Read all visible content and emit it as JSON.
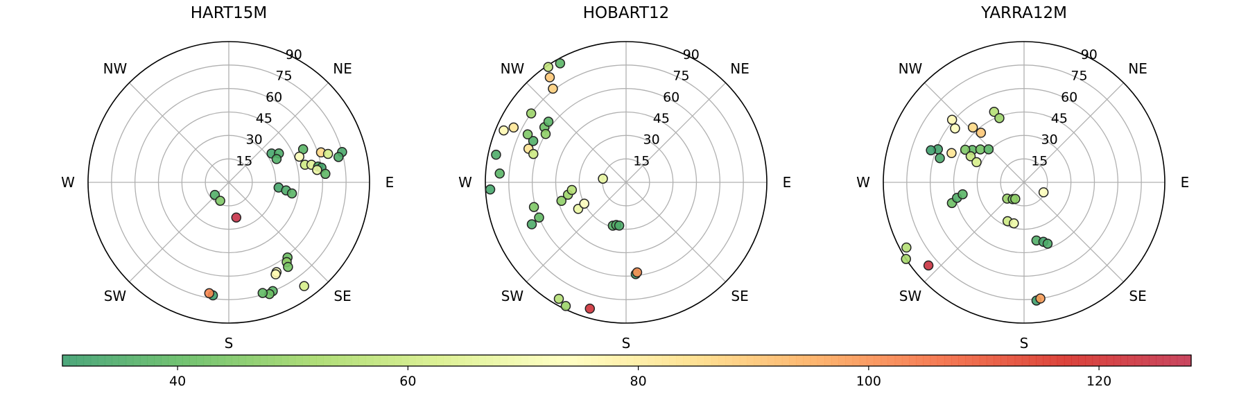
{
  "chart_data": [
    {
      "type": "scatter",
      "title": "HART15M",
      "r_ticks": [
        "15",
        "30",
        "45",
        "60",
        "75",
        "90"
      ],
      "theta_labels": {
        "E": "E",
        "NE": "NE",
        "N": "",
        "NW": "NW",
        "W": "W",
        "SW": "SW",
        "S": "S",
        "SE": "SE"
      },
      "points": [
        {
          "az": 66,
          "zen": 52,
          "v": 38
        },
        {
          "az": 70,
          "zen": 48,
          "v": 72
        },
        {
          "az": 72,
          "zen": 62,
          "v": 86
        },
        {
          "az": 74,
          "zen": 66,
          "v": 62
        },
        {
          "az": 75,
          "zen": 75,
          "v": 34
        },
        {
          "az": 77,
          "zen": 72,
          "v": 35
        },
        {
          "az": 56,
          "zen": 33,
          "v": 33
        },
        {
          "az": 60,
          "zen": 37,
          "v": 35
        },
        {
          "az": 64,
          "zen": 34,
          "v": 36
        },
        {
          "az": 77,
          "zen": 50,
          "v": 60
        },
        {
          "az": 78,
          "zen": 54,
          "v": 65
        },
        {
          "az": 80,
          "zen": 58,
          "v": 36
        },
        {
          "az": 81,
          "zen": 60,
          "v": 33
        },
        {
          "az": 82,
          "zen": 57,
          "v": 68
        },
        {
          "az": 85,
          "zen": 62,
          "v": 39
        },
        {
          "az": 96,
          "zen": 32,
          "v": 33
        },
        {
          "az": 98,
          "zen": 37,
          "v": 35
        },
        {
          "az": 100,
          "zen": 41,
          "v": 38
        },
        {
          "az": 142,
          "zen": 61,
          "v": 42
        },
        {
          "az": 144,
          "zen": 63,
          "v": 48
        },
        {
          "az": 145,
          "zen": 66,
          "v": 44
        },
        {
          "az": 152,
          "zen": 65,
          "v": 72
        },
        {
          "az": 153,
          "zen": 66,
          "v": 76
        },
        {
          "az": 144,
          "zen": 82,
          "v": 62
        },
        {
          "az": 158,
          "zen": 75,
          "v": 38
        },
        {
          "az": 160,
          "zen": 76,
          "v": 42
        },
        {
          "az": 163,
          "zen": 74,
          "v": 40
        },
        {
          "az": 188,
          "zen": 73,
          "v": 31
        },
        {
          "az": 190,
          "zen": 72,
          "v": 102
        },
        {
          "az": 228,
          "zen": 12,
          "v": 36
        },
        {
          "az": 168,
          "zen": 23,
          "v": 126
        },
        {
          "az": 205,
          "zen": 13,
          "v": 45
        }
      ]
    },
    {
      "type": "scatter",
      "title": "HOBART12",
      "r_ticks": [
        "15",
        "30",
        "45",
        "60",
        "75",
        "90"
      ],
      "theta_labels": {
        "E": "E",
        "NE": "NE",
        "N": "",
        "NW": "NW",
        "W": "W",
        "SW": "SW",
        "S": "S",
        "SE": "SE"
      },
      "points": [
        {
          "az": 282,
          "zen": 85,
          "v": 35
        },
        {
          "az": 267,
          "zen": 87,
          "v": 33
        },
        {
          "az": 274,
          "zen": 81,
          "v": 38
        },
        {
          "az": 293,
          "zen": 85,
          "v": 76
        },
        {
          "az": 296,
          "zen": 80,
          "v": 82
        },
        {
          "az": 304,
          "zen": 63,
          "v": 42
        },
        {
          "az": 301,
          "zen": 60,
          "v": 48
        },
        {
          "az": 308,
          "zen": 63,
          "v": 38
        },
        {
          "az": 289,
          "zen": 66,
          "v": 83
        },
        {
          "az": 287,
          "zen": 62,
          "v": 60
        },
        {
          "az": 294,
          "zen": 65,
          "v": 36
        },
        {
          "az": 296,
          "zen": 70,
          "v": 45
        },
        {
          "az": 306,
          "zen": 75,
          "v": 50
        },
        {
          "az": 322,
          "zen": 76,
          "v": 88
        },
        {
          "az": 324,
          "zen": 83,
          "v": 90
        },
        {
          "az": 326,
          "zen": 89,
          "v": 58
        },
        {
          "az": 331,
          "zen": 87,
          "v": 38
        },
        {
          "az": 248,
          "zen": 60,
          "v": 40
        },
        {
          "az": 246,
          "zen": 66,
          "v": 35
        },
        {
          "az": 255,
          "zen": 61,
          "v": 45
        },
        {
          "az": 254,
          "zen": 43,
          "v": 48
        },
        {
          "az": 258,
          "zen": 38,
          "v": 50
        },
        {
          "az": 262,
          "zen": 35,
          "v": 55
        },
        {
          "az": 241,
          "zen": 35,
          "v": 68
        },
        {
          "az": 243,
          "zen": 30,
          "v": 73
        },
        {
          "az": 197,
          "zen": 29,
          "v": 37
        },
        {
          "az": 193,
          "zen": 28,
          "v": 36
        },
        {
          "az": 189,
          "zen": 28,
          "v": 35
        },
        {
          "az": 174,
          "zen": 59,
          "v": 32
        },
        {
          "az": 173,
          "zen": 58,
          "v": 100
        },
        {
          "az": 210,
          "zen": 86,
          "v": 55
        },
        {
          "az": 206,
          "zen": 88,
          "v": 50
        },
        {
          "az": 196,
          "zen": 84,
          "v": 122
        },
        {
          "az": 279,
          "zen": 15,
          "v": 67
        }
      ]
    },
    {
      "type": "scatter",
      "title": "YARRA12M",
      "r_ticks": [
        "15",
        "30",
        "45",
        "60",
        "75",
        "90"
      ],
      "theta_labels": {
        "E": "E",
        "NE": "NE",
        "N": "",
        "NW": "NW",
        "W": "W",
        "SW": "SW",
        "S": "S",
        "SE": "SE"
      },
      "points": [
        {
          "az": 337,
          "zen": 49,
          "v": 55
        },
        {
          "az": 339,
          "zen": 44,
          "v": 50
        },
        {
          "az": 317,
          "zen": 48,
          "v": 86
        },
        {
          "az": 319,
          "zen": 42,
          "v": 90
        },
        {
          "az": 311,
          "zen": 61,
          "v": 76
        },
        {
          "az": 308,
          "zen": 56,
          "v": 74
        },
        {
          "az": 302,
          "zen": 39,
          "v": 40
        },
        {
          "az": 307,
          "zen": 35,
          "v": 43
        },
        {
          "az": 313,
          "zen": 31,
          "v": 38
        },
        {
          "az": 299,
          "zen": 43,
          "v": 45
        },
        {
          "az": 296,
          "zen": 38,
          "v": 58
        },
        {
          "az": 293,
          "zen": 33,
          "v": 62
        },
        {
          "az": 292,
          "zen": 50,
          "v": 83
        },
        {
          "az": 291,
          "zen": 59,
          "v": 32
        },
        {
          "az": 286,
          "zen": 56,
          "v": 34
        },
        {
          "az": 289,
          "zen": 63,
          "v": 31
        },
        {
          "az": 254,
          "zen": 48,
          "v": 42
        },
        {
          "az": 257,
          "zen": 44,
          "v": 36
        },
        {
          "az": 259,
          "zen": 40,
          "v": 38
        },
        {
          "az": 226,
          "zen": 15,
          "v": 50
        },
        {
          "az": 214,
          "zen": 13,
          "v": 45
        },
        {
          "az": 208,
          "zen": 12,
          "v": 48
        },
        {
          "az": 117,
          "zen": 14,
          "v": 73
        },
        {
          "az": 203,
          "zen": 27,
          "v": 60
        },
        {
          "az": 194,
          "zen": 27,
          "v": 68
        },
        {
          "az": 168,
          "zen": 38,
          "v": 36
        },
        {
          "az": 162,
          "zen": 40,
          "v": 33
        },
        {
          "az": 159,
          "zen": 42,
          "v": 35
        },
        {
          "az": 174,
          "zen": 76,
          "v": 31
        },
        {
          "az": 172,
          "zen": 75,
          "v": 98
        },
        {
          "az": 241,
          "zen": 86,
          "v": 55
        },
        {
          "az": 237,
          "zen": 90,
          "v": 52
        },
        {
          "az": 229,
          "zen": 81,
          "v": 124
        }
      ]
    }
  ],
  "colorbar": {
    "vmin": 30,
    "vmax": 128,
    "ticks": [
      "40",
      "60",
      "80",
      "100",
      "120"
    ],
    "colormap": [
      "#3a9d6e",
      "#66bd63",
      "#a6d96a",
      "#d9ef8b",
      "#ffffbf",
      "#fee08b",
      "#fdae61",
      "#f46d43",
      "#d73027",
      "#c2334f"
    ]
  }
}
